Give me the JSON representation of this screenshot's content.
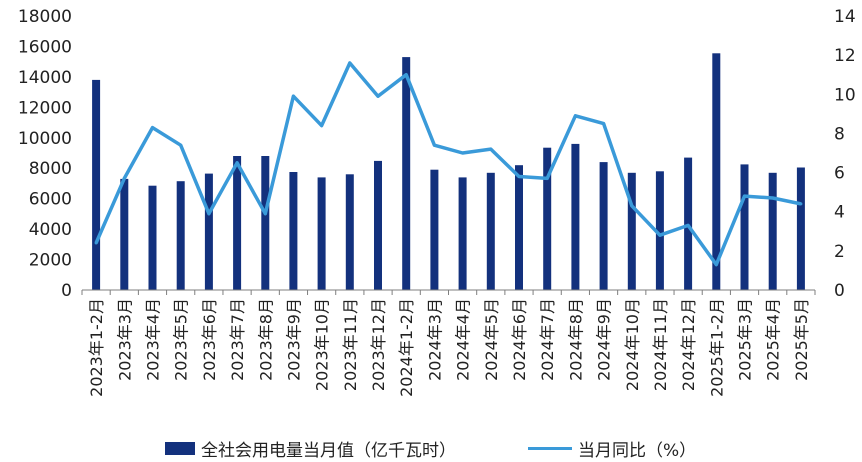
{
  "chart_data": {
    "type": "bar",
    "title": "",
    "categories": [
      "2023年1-2月",
      "2023年3月",
      "2023年4月",
      "2023年5月",
      "2023年6月",
      "2023年7月",
      "2023年8月",
      "2023年9月",
      "2023年10月",
      "2023年11月",
      "2023年12月",
      "2024年1-2月",
      "2024年3月",
      "2024年4月",
      "2024年5月",
      "2024年6月",
      "2024年7月",
      "2024年8月",
      "2024年9月",
      "2024年10月",
      "2024年11月",
      "2024年12月",
      "2025年1-2月",
      "2025年3月",
      "2025年4月",
      "2025年5月"
    ],
    "series": [
      {
        "name": "全社会用电量当月值（亿千瓦时）",
        "type": "bar",
        "axis": "left",
        "color": "#13317d",
        "values": [
          13800,
          7300,
          6850,
          7150,
          7650,
          8800,
          8800,
          7750,
          7400,
          7600,
          8480,
          15300,
          7900,
          7400,
          7700,
          8200,
          9350,
          9600,
          8400,
          7700,
          7800,
          8700,
          15550,
          8250,
          7700,
          8050
        ]
      },
      {
        "name": "当月同比（%）",
        "type": "line",
        "axis": "right",
        "color": "#3a9ad9",
        "values": [
          2.4,
          5.7,
          8.3,
          7.4,
          3.9,
          6.5,
          3.9,
          9.9,
          8.4,
          11.6,
          9.9,
          11.0,
          7.4,
          7.0,
          7.2,
          5.8,
          5.7,
          8.9,
          8.5,
          4.3,
          2.8,
          3.3,
          1.3,
          4.8,
          4.7,
          4.4
        ]
      }
    ],
    "y_left": {
      "ylim": [
        0,
        18000
      ],
      "ticks": [
        "0",
        "2000",
        "4000",
        "6000",
        "8000",
        "10000",
        "12000",
        "14000",
        "16000",
        "18000"
      ]
    },
    "y_right": {
      "ylim": [
        0,
        14
      ],
      "ticks": [
        "0",
        "2",
        "4",
        "6",
        "8",
        "10",
        "12",
        "14"
      ]
    },
    "grid": false,
    "legend_position": "bottom"
  },
  "legend": {
    "bar_label": "全社会用电量当月值（亿千瓦时）",
    "line_label": "当月同比（%）"
  }
}
